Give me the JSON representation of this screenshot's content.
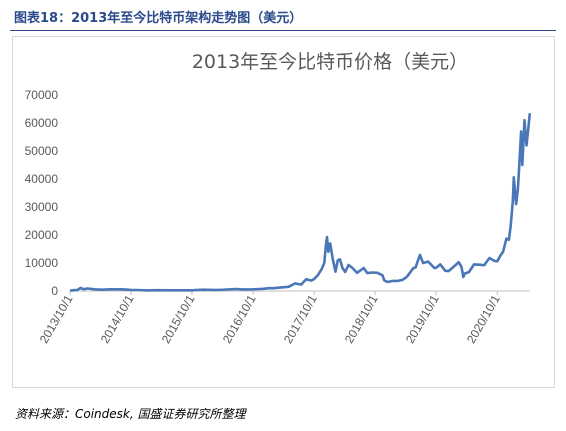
{
  "figure_title": "图表18：2013年至今比特币架构走势图（美元）",
  "source": "资料来源：Coindesk, 国盛证券研究所整理",
  "colors": {
    "line": "#4a77b8",
    "header": "#2b4a8b",
    "axis": "#bfbfbf",
    "text": "#595959"
  },
  "chart_data": {
    "type": "line",
    "title": "2013年至今比特币价格（美元）",
    "xlabel": "",
    "ylabel": "",
    "ylim": [
      0,
      70000
    ],
    "yticks": [
      "0",
      "10000",
      "20000",
      "30000",
      "40000",
      "50000",
      "60000",
      "70000"
    ],
    "xticks": [
      "2013/10/1",
      "2014/10/1",
      "2015/10/1",
      "2016/10/1",
      "2017/10/1",
      "2018/10/1",
      "2019/10/1",
      "2020/10/1"
    ],
    "xlim": [
      "2013/10/1",
      "2021/4/15"
    ],
    "grid": false,
    "legend": "none",
    "series": [
      {
        "x": [
          "2013/10/1",
          "2013/11/15",
          "2013/12/4",
          "2013/12/20",
          "2014/1/15",
          "2014/2/25",
          "2014/4/10",
          "2014/6/1",
          "2014/8/1",
          "2014/10/1",
          "2014/11/1",
          "2015/1/14",
          "2015/3/1",
          "2015/6/1",
          "2015/8/1",
          "2015/10/1",
          "2015/11/4",
          "2015/12/15",
          "2016/2/1",
          "2016/4/1",
          "2016/6/15",
          "2016/8/1",
          "2016/10/1",
          "2016/12/1",
          "2017/1/5",
          "2017/2/1",
          "2017/3/10",
          "2017/5/1",
          "2017/6/10",
          "2017/7/15",
          "2017/8/15",
          "2017/9/15",
          "2017/10/1",
          "2017/10/25",
          "2017/11/15",
          "2017/12/1",
          "2017/12/10",
          "2017/12/17",
          "2017/12/25",
          "2018/1/5",
          "2018/1/20",
          "2018/2/6",
          "2018/2/20",
          "2018/3/5",
          "2018/3/20",
          "2018/4/5",
          "2018/4/25",
          "2018/5/15",
          "2018/6/15",
          "2018/7/25",
          "2018/8/15",
          "2018/9/15",
          "2018/10/15",
          "2018/11/14",
          "2018/11/25",
          "2018/12/15",
          "2019/1/15",
          "2019/2/15",
          "2019/3/15",
          "2019/4/10",
          "2019/5/15",
          "2019/6/1",
          "2019/6/26",
          "2019/7/15",
          "2019/8/15",
          "2019/9/20",
          "2019/10/1",
          "2019/10/26",
          "2019/11/25",
          "2019/12/15",
          "2020/1/15",
          "2020/2/13",
          "2020/3/1",
          "2020/3/12",
          "2020/3/20",
          "2020/4/15",
          "2020/5/15",
          "2020/6/15",
          "2020/7/15",
          "2020/8/15",
          "2020/9/15",
          "2020/10/1",
          "2020/10/21",
          "2020/11/5",
          "2020/11/25",
          "2020/12/10",
          "2020/12/20",
          "2021/1/2",
          "2021/1/8",
          "2021/1/22",
          "2021/2/1",
          "2021/2/10",
          "2021/2/21",
          "2021/2/28",
          "2021/3/13",
          "2021/3/25",
          "2021/4/5",
          "2021/4/14"
        ],
        "y": [
          130,
          400,
          1100,
          650,
          900,
          600,
          450,
          620,
          590,
          380,
          340,
          200,
          270,
          240,
          260,
          240,
          400,
          450,
          380,
          420,
          700,
          580,
          620,
          780,
          1000,
          1000,
          1200,
          1500,
          2700,
          2300,
          4200,
          3700,
          4300,
          5800,
          7800,
          10000,
          16000,
          19300,
          14000,
          17000,
          11500,
          6900,
          11000,
          11300,
          8200,
          6800,
          9300,
          8400,
          6500,
          8200,
          6400,
          6600,
          6500,
          5600,
          3800,
          3200,
          3600,
          3600,
          4000,
          5100,
          8000,
          8500,
          12900,
          10000,
          10500,
          8200,
          8300,
          9500,
          7200,
          7100,
          8700,
          10300,
          8600,
          5000,
          6200,
          6800,
          9500,
          9400,
          9200,
          11800,
          10700,
          10600,
          12800,
          14000,
          18700,
          18300,
          23000,
          32000,
          40600,
          31000,
          36000,
          45000,
          57000,
          45000,
          61000,
          52000,
          58000,
          63500
        ]
      }
    ]
  }
}
